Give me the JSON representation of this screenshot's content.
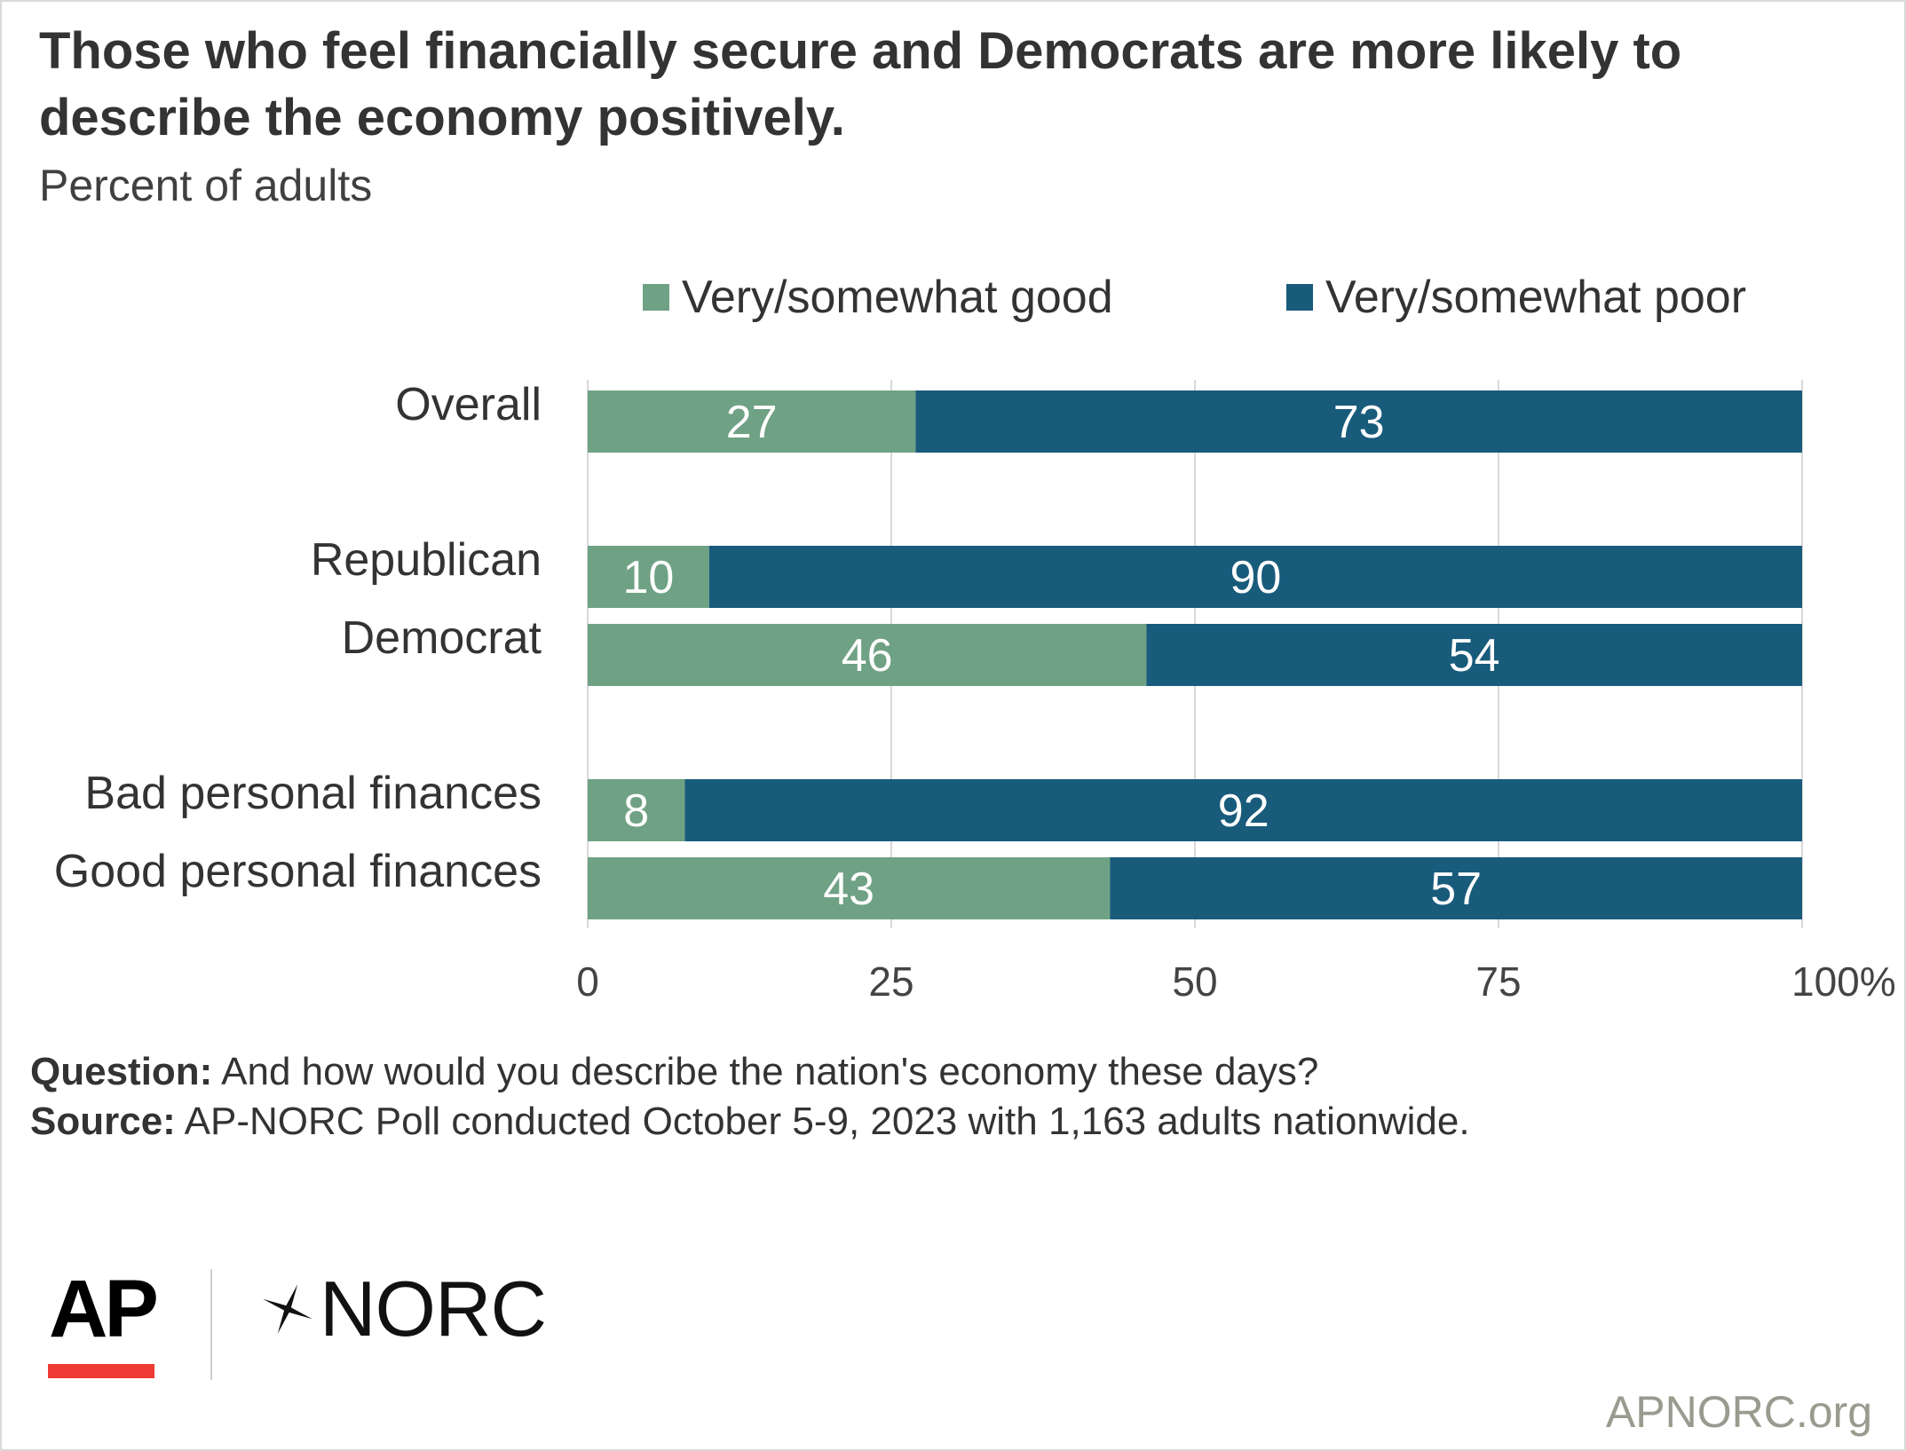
{
  "title": "Those who feel financially secure and Democrats are more likely to describe the economy positively.",
  "subtitle": "Percent of adults",
  "colors": {
    "good": "#6fa184",
    "poor": "#185b7b",
    "accent_red": "#ee3b33",
    "gridline": "#d9d9d9"
  },
  "notes": {
    "question_label": "Question:",
    "question_text": "And how would you describe the nation's economy these days?",
    "source_label": "Source:",
    "source_text": "AP-NORC Poll conducted October 5-9, 2023 with 1,163 adults nationwide."
  },
  "logos": {
    "ap": "AP",
    "norc": "NORC",
    "norc_icon": "norc-star-icon"
  },
  "site": "APNORC.org",
  "chart_data": {
    "type": "bar",
    "orientation": "horizontal",
    "stacked": true,
    "categories": [
      "Overall",
      "Republican",
      "Democrat",
      "Bad personal finances",
      "Good personal finances"
    ],
    "groups": [
      [
        "Overall"
      ],
      [
        "Republican",
        "Democrat"
      ],
      [
        "Bad personal finances",
        "Good personal finances"
      ]
    ],
    "series": [
      {
        "name": "Very/somewhat good",
        "values": [
          27,
          10,
          46,
          8,
          43
        ],
        "color": "#6fa184"
      },
      {
        "name": "Very/somewhat poor",
        "values": [
          73,
          90,
          54,
          92,
          57
        ],
        "color": "#185b7b"
      }
    ],
    "x_ticks": [
      "0",
      "25",
      "50",
      "75",
      "100%"
    ],
    "xlim": [
      0,
      100
    ],
    "grid": true,
    "legend": "top"
  }
}
